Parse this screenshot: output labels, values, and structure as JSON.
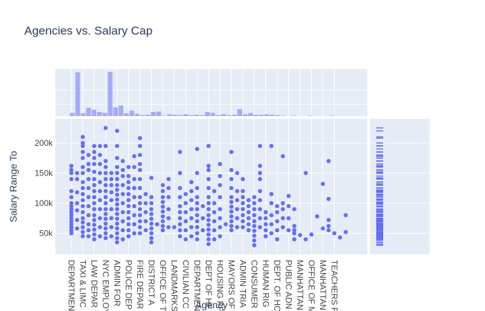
{
  "chart_data": {
    "type": "scatter",
    "title": "Agencies vs. Salary Cap",
    "xlabel": "Agency",
    "ylabel": "Salary Range To",
    "ylim": [
      15000,
      240000
    ],
    "yticks": [
      50000,
      100000,
      150000,
      200000
    ],
    "ytick_labels": [
      "50k",
      "100k",
      "150k",
      "200k"
    ],
    "grid": true,
    "marginal_x": "histogram",
    "marginal_y": "rug",
    "colors": {
      "marker": "#636efa",
      "plot_bg": "#e5ecf6",
      "grid": "#ffffff",
      "hist": "#a5abf9"
    },
    "categories": [
      "DEPARTMENT OF ...",
      "TAXI & LIMOUSINE ...",
      "LAW DEPARTMENT",
      "NYC EMPLOYEES ...",
      "ADMIN FOR ...",
      "POLICE DEPARTMENT",
      "FIRE DEPARTMENT",
      "DISTRICT ATTORNEY ...",
      "OFFICE OF ...",
      "LANDMARKS ...",
      "CIVILIAN COMPLAINT ...",
      "DEPARTMENT OF ...",
      "DEPT OF ...",
      "HOUSING PRESERVATION ...",
      "MAYORS OFFICE ...",
      "ADMIN TRIALS ...",
      "CONSUMER AFFAIRS",
      "HUMAN RIGHTS ...",
      "DEPT. OF HOMELESS ...",
      "PUBLIC ADMINISTRATOR ...",
      "MANHATTAN ...",
      "OFFICE OF MANAGEMENT ...",
      "MANHATTAN ...",
      "TEACHERS RETIREMENT ..."
    ],
    "tick_labels": [
      "DEPARTMEN",
      "TAXI & LIMC",
      "LAW DEPAR",
      "NYC EMPLOY",
      "ADMIN FOR",
      "POLICE DEP",
      "FIRE DEPAR",
      "DISTRICT A",
      "OFFICE OF T",
      "LANDMARKS",
      "CIVILIAN CC",
      "DEPARTMEN",
      "DEPT OF HE",
      "HOUSING PF",
      "MAYORS OF",
      "ADMIN TRIA",
      "CONSUMER",
      "HUMAN RIG",
      "DEPT. OF HC",
      "PUBLIC ADN",
      "MANHATTAN",
      "OFFICE OF M",
      "MANHATTAN",
      "TEACHERS F"
    ],
    "counts": [
      7,
      95,
      6,
      18,
      14,
      9,
      7,
      96,
      19,
      23,
      6,
      12,
      5,
      2,
      3,
      9,
      10,
      1,
      4,
      3,
      2,
      4,
      2,
      3,
      2,
      9,
      7,
      2,
      4,
      2,
      3,
      15,
      4,
      7,
      3,
      3,
      4,
      3,
      2,
      1,
      0,
      1,
      0,
      0,
      1,
      0,
      0,
      0,
      1,
      0
    ],
    "points": [
      [
        0,
        55000
      ],
      [
        0,
        60000
      ],
      [
        0,
        65000
      ],
      [
        0,
        70000
      ],
      [
        0,
        75000
      ],
      [
        0,
        80000
      ],
      [
        0,
        85000
      ],
      [
        0,
        90000
      ],
      [
        0,
        95000
      ],
      [
        0,
        100000
      ],
      [
        0,
        110000
      ],
      [
        0,
        120000
      ],
      [
        0,
        140000
      ],
      [
        0,
        150000
      ],
      [
        0,
        155000
      ],
      [
        0,
        162000
      ],
      [
        0,
        50000
      ],
      [
        0.5,
        58000
      ],
      [
        0.5,
        72000
      ],
      [
        0.5,
        88000
      ],
      [
        0.5,
        100000
      ],
      [
        0.5,
        118000
      ],
      [
        0.5,
        140000
      ],
      [
        0.5,
        150000
      ],
      [
        1,
        45000
      ],
      [
        1,
        52000
      ],
      [
        1,
        60000
      ],
      [
        1,
        68000
      ],
      [
        1,
        75000
      ],
      [
        1,
        85000
      ],
      [
        1,
        95000
      ],
      [
        1,
        105000
      ],
      [
        1,
        115000
      ],
      [
        1,
        125000
      ],
      [
        1,
        135000
      ],
      [
        1,
        150000
      ],
      [
        1,
        160000
      ],
      [
        1,
        175000
      ],
      [
        1,
        185000
      ],
      [
        1,
        195000
      ],
      [
        1,
        200000
      ],
      [
        1,
        210000
      ],
      [
        1.5,
        45000
      ],
      [
        1.5,
        55000
      ],
      [
        1.5,
        65000
      ],
      [
        1.5,
        80000
      ],
      [
        1.5,
        95000
      ],
      [
        1.5,
        110000
      ],
      [
        1.5,
        125000
      ],
      [
        1.5,
        140000
      ],
      [
        1.5,
        155000
      ],
      [
        1.5,
        165000
      ],
      [
        1.5,
        180000
      ],
      [
        2,
        40000
      ],
      [
        2,
        48000
      ],
      [
        2,
        56000
      ],
      [
        2,
        64000
      ],
      [
        2,
        72000
      ],
      [
        2,
        80000
      ],
      [
        2,
        90000
      ],
      [
        2,
        100000
      ],
      [
        2,
        110000
      ],
      [
        2,
        120000
      ],
      [
        2,
        130000
      ],
      [
        2,
        140000
      ],
      [
        2,
        152000
      ],
      [
        2,
        165000
      ],
      [
        2,
        175000
      ],
      [
        2,
        185000
      ],
      [
        2,
        195000
      ],
      [
        2.5,
        45000
      ],
      [
        2.5,
        60000
      ],
      [
        2.5,
        75000
      ],
      [
        2.5,
        90000
      ],
      [
        2.5,
        105000
      ],
      [
        2.5,
        120000
      ],
      [
        2.5,
        135000
      ],
      [
        2.5,
        150000
      ],
      [
        2.5,
        165000
      ],
      [
        2.5,
        180000
      ],
      [
        2.5,
        195000
      ],
      [
        3,
        42000
      ],
      [
        3,
        50000
      ],
      [
        3,
        58000
      ],
      [
        3,
        66000
      ],
      [
        3,
        74000
      ],
      [
        3,
        82000
      ],
      [
        3,
        90000
      ],
      [
        3,
        100000
      ],
      [
        3,
        110000
      ],
      [
        3,
        120000
      ],
      [
        3,
        130000
      ],
      [
        3,
        140000
      ],
      [
        3,
        150000
      ],
      [
        3,
        160000
      ],
      [
        3,
        170000
      ],
      [
        3,
        195000
      ],
      [
        3,
        225000
      ],
      [
        3.5,
        45000
      ],
      [
        3.5,
        60000
      ],
      [
        3.5,
        75000
      ],
      [
        3.5,
        90000
      ],
      [
        3.5,
        105000
      ],
      [
        3.5,
        118000
      ],
      [
        3.5,
        130000
      ],
      [
        3.5,
        140000
      ],
      [
        3.5,
        150000
      ],
      [
        4,
        35000
      ],
      [
        4,
        42000
      ],
      [
        4,
        50000
      ],
      [
        4,
        58000
      ],
      [
        4,
        66000
      ],
      [
        4,
        74000
      ],
      [
        4,
        82000
      ],
      [
        4,
        90000
      ],
      [
        4,
        98000
      ],
      [
        4,
        106000
      ],
      [
        4,
        114000
      ],
      [
        4,
        122000
      ],
      [
        4,
        130000
      ],
      [
        4,
        140000
      ],
      [
        4,
        150000
      ],
      [
        4,
        160000
      ],
      [
        4,
        175000
      ],
      [
        4,
        195000
      ],
      [
        4,
        220000
      ],
      [
        4.5,
        40000
      ],
      [
        4.5,
        55000
      ],
      [
        4.5,
        70000
      ],
      [
        4.5,
        85000
      ],
      [
        4.5,
        100000
      ],
      [
        4.5,
        115000
      ],
      [
        4.5,
        130000
      ],
      [
        4.5,
        145000
      ],
      [
        4.5,
        155000
      ],
      [
        4.5,
        170000
      ],
      [
        5,
        45000
      ],
      [
        5,
        55000
      ],
      [
        5,
        65000
      ],
      [
        5,
        75000
      ],
      [
        5,
        85000
      ],
      [
        5,
        95000
      ],
      [
        5,
        105000
      ],
      [
        5,
        115000
      ],
      [
        5,
        125000
      ],
      [
        5,
        135000
      ],
      [
        5,
        145000
      ],
      [
        5,
        160000
      ],
      [
        5.5,
        50000
      ],
      [
        5.5,
        65000
      ],
      [
        5.5,
        80000
      ],
      [
        5.5,
        95000
      ],
      [
        5.5,
        110000
      ],
      [
        5.5,
        125000
      ],
      [
        5.5,
        140000
      ],
      [
        5.5,
        160000
      ],
      [
        5.5,
        178000
      ],
      [
        6,
        50000
      ],
      [
        6,
        60000
      ],
      [
        6,
        70000
      ],
      [
        6,
        80000
      ],
      [
        6,
        90000
      ],
      [
        6,
        100000
      ],
      [
        6,
        110000
      ],
      [
        6,
        125000
      ],
      [
        6,
        140000
      ],
      [
        6,
        155000
      ],
      [
        6,
        165000
      ],
      [
        6,
        180000
      ],
      [
        6,
        195000
      ],
      [
        6,
        208000
      ],
      [
        6.5,
        55000
      ],
      [
        6.5,
        70000
      ],
      [
        6.5,
        85000
      ],
      [
        6.5,
        100000
      ],
      [
        6.5,
        115000
      ],
      [
        7,
        35000
      ],
      [
        7,
        42000
      ],
      [
        7,
        50000
      ],
      [
        7,
        58000
      ],
      [
        7,
        66000
      ],
      [
        7,
        74000
      ],
      [
        7,
        82000
      ],
      [
        7,
        90000
      ],
      [
        7,
        100000
      ],
      [
        7,
        110000
      ],
      [
        7,
        142000
      ],
      [
        7.5,
        65000
      ],
      [
        8,
        55000
      ],
      [
        8,
        62000
      ],
      [
        8,
        70000
      ],
      [
        8,
        78000
      ],
      [
        8,
        86000
      ],
      [
        8,
        94000
      ],
      [
        8,
        102000
      ],
      [
        8,
        110000
      ],
      [
        8,
        120000
      ],
      [
        8,
        130000
      ],
      [
        8.5,
        60000
      ],
      [
        8.5,
        75000
      ],
      [
        8.5,
        90000
      ],
      [
        8.5,
        110000
      ],
      [
        8.5,
        125000
      ],
      [
        8.5,
        140000
      ],
      [
        9,
        60000
      ],
      [
        9.5,
        45000
      ],
      [
        9.5,
        55000
      ],
      [
        9.5,
        65000
      ],
      [
        9.5,
        75000
      ],
      [
        9.5,
        85000
      ],
      [
        9.5,
        95000
      ],
      [
        9.5,
        110000
      ],
      [
        9.5,
        125000
      ],
      [
        9.5,
        150000
      ],
      [
        9.5,
        185000
      ],
      [
        10,
        40000
      ],
      [
        10,
        55000
      ],
      [
        10,
        70000
      ],
      [
        10,
        85000
      ],
      [
        10,
        100000
      ],
      [
        10,
        115000
      ],
      [
        10.5,
        45000
      ],
      [
        10.5,
        60000
      ],
      [
        10.5,
        75000
      ],
      [
        10.5,
        90000
      ],
      [
        10.5,
        105000
      ],
      [
        10.5,
        120000
      ],
      [
        10.5,
        135000
      ],
      [
        11,
        40000
      ],
      [
        11,
        50000
      ],
      [
        11,
        60000
      ],
      [
        11,
        70000
      ],
      [
        11,
        80000
      ],
      [
        11,
        90000
      ],
      [
        11,
        100000
      ],
      [
        11,
        110000
      ],
      [
        11,
        125000
      ],
      [
        11,
        150000
      ],
      [
        11,
        190000
      ],
      [
        11.5,
        55000
      ],
      [
        11.5,
        75000
      ],
      [
        11.5,
        95000
      ],
      [
        12,
        32000
      ],
      [
        12,
        40000
      ],
      [
        12,
        48000
      ],
      [
        12,
        56000
      ],
      [
        12,
        64000
      ],
      [
        12,
        72000
      ],
      [
        12,
        80000
      ],
      [
        12,
        90000
      ],
      [
        12,
        100000
      ],
      [
        12,
        110000
      ],
      [
        12,
        125000
      ],
      [
        12,
        140000
      ],
      [
        12,
        155000
      ],
      [
        12,
        162000
      ],
      [
        12,
        195000
      ],
      [
        12.5,
        40000
      ],
      [
        12.5,
        55000
      ],
      [
        12.5,
        70000
      ],
      [
        12.5,
        85000
      ],
      [
        12.5,
        100000
      ],
      [
        12.5,
        120000
      ],
      [
        13,
        45000
      ],
      [
        13,
        60000
      ],
      [
        13,
        75000
      ],
      [
        13,
        90000
      ],
      [
        13,
        110000
      ],
      [
        13,
        130000
      ],
      [
        13,
        145000
      ],
      [
        13,
        165000
      ],
      [
        13.5,
        65000
      ],
      [
        14,
        55000
      ],
      [
        14,
        62000
      ],
      [
        14,
        70000
      ],
      [
        14,
        78000
      ],
      [
        14,
        86000
      ],
      [
        14,
        94000
      ],
      [
        14,
        102000
      ],
      [
        14,
        110000
      ],
      [
        14,
        125000
      ],
      [
        14,
        140000
      ],
      [
        14,
        155000
      ],
      [
        14,
        185000
      ],
      [
        14.5,
        60000
      ],
      [
        14.5,
        75000
      ],
      [
        14.5,
        90000
      ],
      [
        14.5,
        105000
      ],
      [
        14.5,
        120000
      ],
      [
        14.5,
        150000
      ],
      [
        15,
        60000
      ],
      [
        15,
        70000
      ],
      [
        15,
        80000
      ],
      [
        15,
        90000
      ],
      [
        15,
        100000
      ],
      [
        15,
        110000
      ],
      [
        15,
        120000
      ],
      [
        15,
        140000
      ],
      [
        15.5,
        55000
      ],
      [
        15.5,
        65000
      ],
      [
        15.5,
        75000
      ],
      [
        15.5,
        85000
      ],
      [
        15.5,
        95000
      ],
      [
        15.5,
        105000
      ],
      [
        16,
        30000
      ],
      [
        16,
        38000
      ],
      [
        16,
        46000
      ],
      [
        16,
        54000
      ],
      [
        16,
        62000
      ],
      [
        16,
        70000
      ],
      [
        16,
        80000
      ],
      [
        16,
        90000
      ],
      [
        16,
        100000
      ],
      [
        16,
        110000
      ],
      [
        16.5,
        60000
      ],
      [
        16.5,
        75000
      ],
      [
        16.5,
        90000
      ],
      [
        16.5,
        105000
      ],
      [
        16.5,
        120000
      ],
      [
        16.5,
        140000
      ],
      [
        16.5,
        150000
      ],
      [
        16.5,
        162000
      ],
      [
        16.5,
        195000
      ],
      [
        17,
        45000
      ],
      [
        17,
        55000
      ],
      [
        17,
        65000
      ],
      [
        17,
        75000
      ],
      [
        17,
        85000
      ],
      [
        17.5,
        50000
      ],
      [
        17.5,
        65000
      ],
      [
        17.5,
        80000
      ],
      [
        17.5,
        100000
      ],
      [
        17.5,
        115000
      ],
      [
        17.5,
        195000
      ],
      [
        18,
        40000
      ],
      [
        18,
        55000
      ],
      [
        18,
        70000
      ],
      [
        18,
        85000
      ],
      [
        18,
        95000
      ],
      [
        18.5,
        60000
      ],
      [
        18.5,
        75000
      ],
      [
        18.5,
        90000
      ],
      [
        18.5,
        100000
      ],
      [
        18.5,
        178000
      ],
      [
        19,
        55000
      ],
      [
        19,
        75000
      ],
      [
        19,
        95000
      ],
      [
        19,
        112000
      ],
      [
        19.5,
        40000
      ],
      [
        19.5,
        50000
      ],
      [
        19.5,
        55000
      ],
      [
        19.5,
        62000
      ],
      [
        19.5,
        90000
      ],
      [
        20,
        47000
      ],
      [
        20.5,
        40000
      ],
      [
        20.5,
        150000
      ],
      [
        21,
        48000
      ],
      [
        21.5,
        78000
      ],
      [
        22,
        58000
      ],
      [
        22,
        132000
      ],
      [
        22.5,
        55000
      ],
      [
        22.5,
        62000
      ],
      [
        22.5,
        72000
      ],
      [
        22.5,
        107000
      ],
      [
        22.5,
        170000
      ],
      [
        23,
        50000
      ],
      [
        23.5,
        43000
      ],
      [
        24,
        52000
      ],
      [
        24,
        80000
      ]
    ]
  }
}
